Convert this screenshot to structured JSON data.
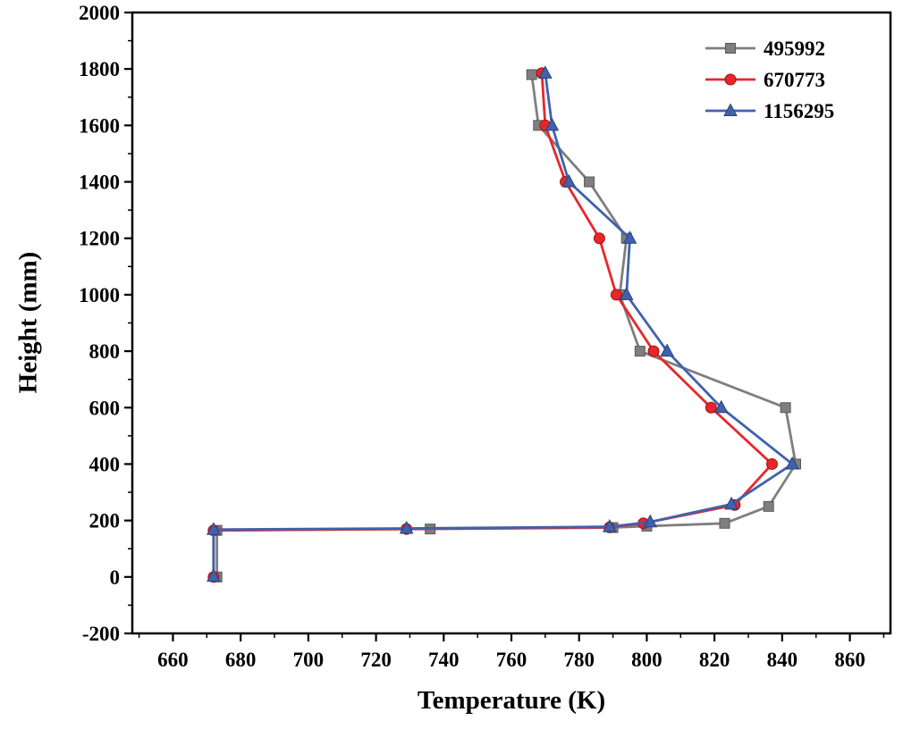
{
  "chart_data": {
    "type": "line",
    "title": "",
    "xlabel": "Temperature (K)",
    "ylabel": "Height (mm)",
    "xlim": [
      648,
      872
    ],
    "ylim": [
      -200,
      2000
    ],
    "xticks": [
      660,
      680,
      700,
      720,
      740,
      760,
      780,
      800,
      820,
      840,
      860
    ],
    "yticks": [
      -200,
      0,
      200,
      400,
      600,
      800,
      1000,
      1200,
      1400,
      1600,
      1800,
      2000
    ],
    "x_minor_step": 10,
    "y_minor_step": 100,
    "grid": false,
    "legend_position": "top-right",
    "frame_color": "#000000",
    "series": [
      {
        "name": "495992",
        "color": "#7f7f7f",
        "edge_color": "#595959",
        "marker": "square",
        "points": [
          [
            673,
            0
          ],
          [
            673,
            165
          ],
          [
            736,
            170
          ],
          [
            790,
            175
          ],
          [
            800,
            180
          ],
          [
            823,
            190
          ],
          [
            836,
            250
          ],
          [
            844,
            400
          ],
          [
            841,
            600
          ],
          [
            798,
            800
          ],
          [
            792,
            1000
          ],
          [
            794,
            1200
          ],
          [
            783,
            1400
          ],
          [
            768,
            1600
          ],
          [
            766,
            1780
          ]
        ]
      },
      {
        "name": "670773",
        "color": "#e8262a",
        "edge_color": "#a01216",
        "marker": "circle",
        "points": [
          [
            672,
            0
          ],
          [
            672,
            165
          ],
          [
            729,
            170
          ],
          [
            789,
            176
          ],
          [
            799,
            190
          ],
          [
            826,
            255
          ],
          [
            837,
            400
          ],
          [
            819,
            600
          ],
          [
            802,
            800
          ],
          [
            791,
            1000
          ],
          [
            786,
            1200
          ],
          [
            776,
            1400
          ],
          [
            770,
            1600
          ],
          [
            769,
            1785
          ]
        ]
      },
      {
        "name": "1156295",
        "color": "#3f62ad",
        "edge_color": "#2a4475",
        "marker": "triangle",
        "points": [
          [
            672,
            2
          ],
          [
            672,
            168
          ],
          [
            729,
            172
          ],
          [
            789,
            178
          ],
          [
            801,
            195
          ],
          [
            825,
            258
          ],
          [
            843,
            400
          ],
          [
            822,
            600
          ],
          [
            806,
            800
          ],
          [
            794,
            1000
          ],
          [
            795,
            1200
          ],
          [
            777,
            1400
          ],
          [
            772,
            1600
          ],
          [
            770,
            1785
          ]
        ]
      }
    ]
  }
}
